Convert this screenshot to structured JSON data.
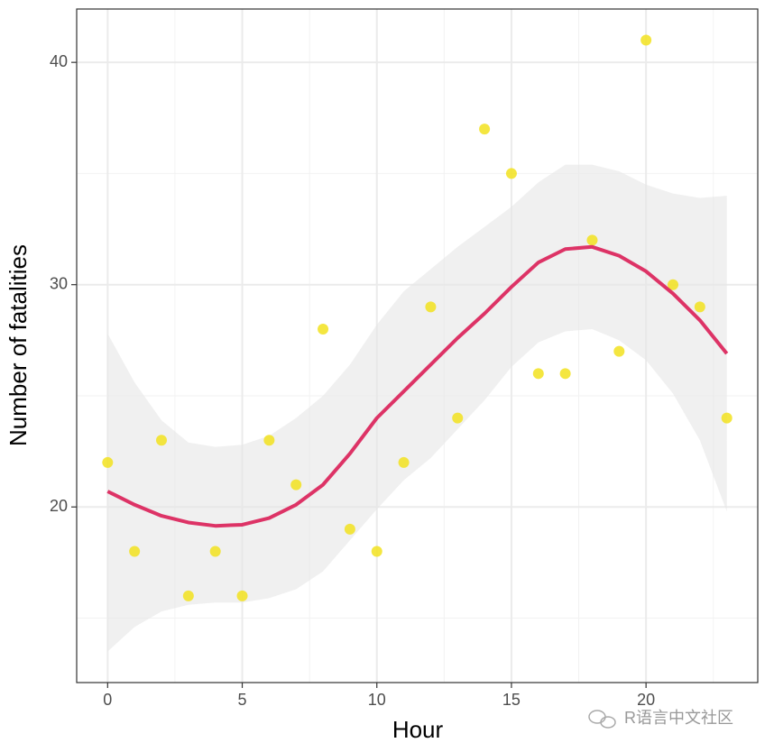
{
  "chart_data": {
    "type": "scatter",
    "x_label": "Hour",
    "y_label": "Number of fatalities",
    "x": [
      0,
      1,
      2,
      3,
      4,
      5,
      6,
      7,
      8,
      9,
      10,
      11,
      12,
      13,
      14,
      15,
      16,
      17,
      18,
      19,
      20,
      21,
      22,
      23
    ],
    "values": [
      22,
      18,
      23,
      16,
      18,
      16,
      23,
      21,
      28,
      19,
      18,
      22,
      29,
      24,
      37,
      35,
      26,
      26,
      32,
      27,
      41,
      30,
      29,
      24
    ],
    "color": "#f2e21f",
    "smooth": {
      "values": [
        20.7,
        20.1,
        19.6,
        19.3,
        19.15,
        19.2,
        19.5,
        20.1,
        21.0,
        22.4,
        24.0,
        25.2,
        26.4,
        27.6,
        28.7,
        29.9,
        31.0,
        31.6,
        31.7,
        31.3,
        30.6,
        29.6,
        28.4,
        26.9
      ],
      "lower": [
        13.5,
        14.6,
        15.3,
        15.6,
        15.7,
        15.7,
        15.9,
        16.3,
        17.1,
        18.5,
        19.9,
        21.2,
        22.2,
        23.5,
        24.8,
        26.3,
        27.4,
        27.9,
        28.0,
        27.5,
        26.6,
        25.1,
        23.0,
        19.8
      ],
      "upper": [
        27.8,
        25.6,
        23.9,
        22.9,
        22.7,
        22.8,
        23.2,
        24.0,
        25.0,
        26.4,
        28.2,
        29.7,
        30.7,
        31.7,
        32.6,
        33.5,
        34.6,
        35.4,
        35.4,
        35.1,
        34.5,
        34.1,
        33.9,
        34.0
      ],
      "color": "#dd3366",
      "band_color": "#e6e6e6"
    },
    "xlim": [
      -1.15,
      24.15
    ],
    "ylim": [
      12.1,
      42.4
    ],
    "xticks": [
      0,
      5,
      10,
      15,
      20
    ],
    "yticks": [
      20,
      30,
      40
    ],
    "xminorticks": [
      2.5,
      7.5,
      12.5,
      17.5,
      22.5
    ],
    "yminorticks": [
      15,
      25,
      35
    ],
    "grid": true,
    "watermark": "R语言中文社区"
  }
}
